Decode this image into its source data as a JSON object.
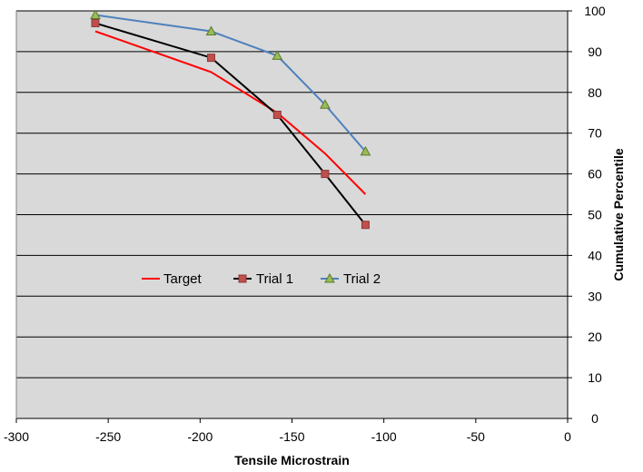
{
  "chart_data": {
    "type": "line",
    "title": "",
    "xlabel": "Tensile Microstrain",
    "ylabel": "Cumulative Percentile",
    "xlim": [
      -300,
      0
    ],
    "ylim": [
      0,
      100
    ],
    "x_ticks": [
      -300,
      -250,
      -200,
      -150,
      -100,
      -50,
      0
    ],
    "y_ticks": [
      0,
      10,
      20,
      30,
      40,
      50,
      60,
      70,
      80,
      90,
      100
    ],
    "y_axis_side": "right",
    "grid": "horizontal",
    "plot_background": "#d9d9d9",
    "legend_position": "inside-center-left",
    "series": [
      {
        "name": "Target",
        "color": "#ff0000",
        "marker": "none",
        "x": [
          -257,
          -194,
          -158,
          -132,
          -110
        ],
        "y": [
          95,
          85,
          75,
          65,
          55
        ]
      },
      {
        "name": "Trial 1",
        "color": "#000000",
        "marker": "square",
        "marker_fill": "#c0504d",
        "marker_stroke": "#8c3836",
        "x": [
          -257,
          -194,
          -158,
          -132,
          -110
        ],
        "y": [
          97,
          88.5,
          74.5,
          60,
          47.5
        ]
      },
      {
        "name": "Trial 2",
        "color": "#4f81bd",
        "marker": "triangle",
        "marker_fill": "#9bbb59",
        "marker_stroke": "#5a7a2a",
        "x": [
          -257,
          -194,
          -158,
          -132,
          -110
        ],
        "y": [
          99,
          95,
          89,
          77,
          65.5
        ]
      }
    ]
  }
}
